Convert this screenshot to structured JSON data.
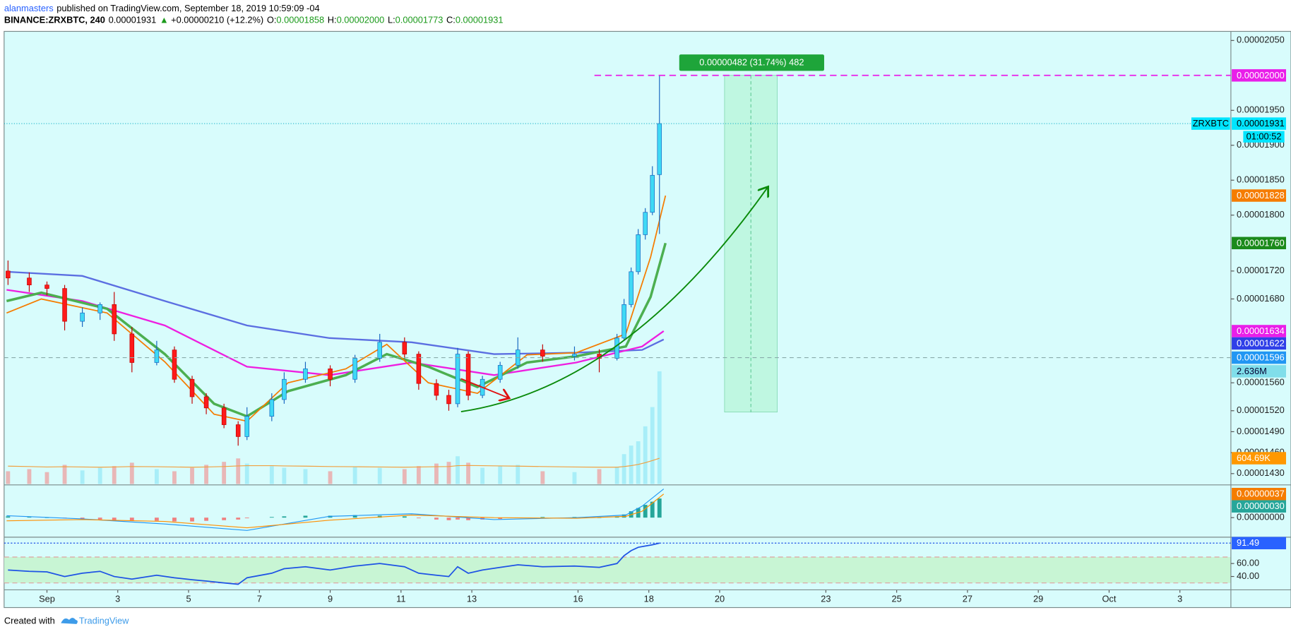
{
  "header": {
    "author": "alanmasters",
    "published": "published on TradingView.com, September 18, 2019 10:59:09 -04",
    "symbol": "BINANCE:ZRXBTC, 240",
    "last": "0.00001931",
    "arrow": "▲",
    "change": "+0.00000210 (+12.2%)",
    "ohlc": [
      {
        "label": "O:",
        "value": "0.00001858"
      },
      {
        "label": "H:",
        "value": "0.00002000"
      },
      {
        "label": "L:",
        "value": "0.00001773"
      },
      {
        "label": "C:",
        "value": "0.00001931"
      }
    ]
  },
  "footer": {
    "text": "Created with",
    "brand": "TradingView"
  },
  "chart_data": {
    "type": "candlestick",
    "xlim": [
      -0.21,
      34.44
    ],
    "xticks": [
      {
        "value": 1,
        "label": "Sep"
      },
      3,
      5,
      7,
      9,
      11,
      13,
      16,
      18,
      20,
      23,
      25,
      27,
      29,
      {
        "value": 31,
        "label": "Oct"
      },
      {
        "value": 33,
        "label": "3"
      }
    ],
    "ylim": [
      1.415e-05,
      2.063e-05
    ],
    "yticks": [
      {
        "value": 2.05e-05,
        "label": "0.00002050"
      },
      {
        "value": 1.95e-05,
        "label": "0.00001950"
      },
      {
        "value": 1.9e-05,
        "label": "0.00001900"
      },
      {
        "value": 1.85e-05,
        "label": "0.00001850"
      },
      {
        "value": 1.8e-05,
        "label": "0.00001800"
      },
      {
        "value": 1.72e-05,
        "label": "0.00001720"
      },
      {
        "value": 1.68e-05,
        "label": "0.00001680"
      },
      {
        "value": 1.56e-05,
        "label": "0.00001560"
      },
      {
        "value": 1.52e-05,
        "label": "0.00001520"
      },
      {
        "value": 1.49e-05,
        "label": "0.00001490"
      },
      {
        "value": 1.46e-05,
        "label": "0.00001460"
      },
      {
        "value": 1.43e-05,
        "label": "0.00001430"
      }
    ],
    "grid": false,
    "up_color": "#3fd9f5",
    "down_color": "#ff1a1a",
    "candles": {
      "x": [
        -0.1,
        0.5,
        1,
        1.5,
        2,
        2.5,
        2.9,
        3.4,
        4.1,
        4.6,
        5.1,
        5.5,
        6,
        6.4,
        6.65,
        7.35,
        7.7,
        8.3,
        9,
        9.7,
        10.4,
        11.1,
        11.5,
        12,
        12.35,
        12.6,
        12.9,
        13.3,
        13.8,
        14.3,
        15,
        15.9,
        16.6,
        17.1,
        17.3,
        17.5,
        17.7,
        17.9,
        18.1,
        18.3
      ],
      "open": [
        1.72e-05,
        1.71e-05,
        1.7e-05,
        1.695e-05,
        1.648e-05,
        1.66e-05,
        1.672e-05,
        1.63e-05,
        1.589e-05,
        1.607e-05,
        1.565e-05,
        1.54e-05,
        1.524e-05,
        1.5e-05,
        1.483e-05,
        1.512e-05,
        1.536e-05,
        1.565e-05,
        1.58e-05,
        1.565e-05,
        1.595e-05,
        1.618e-05,
        1.601e-05,
        1.559e-05,
        1.542e-05,
        1.53e-05,
        1.601e-05,
        1.542e-05,
        1.565e-05,
        1.585e-05,
        1.607e-05,
        1.598e-05,
        1.601e-05,
        1.595e-05,
        1.624e-05,
        1.672e-05,
        1.719e-05,
        1.772e-05,
        1.804e-05,
        1.858e-05
      ],
      "high": [
        1.735e-05,
        1.718e-05,
        1.705e-05,
        1.7e-05,
        1.668e-05,
        1.675e-05,
        1.69e-05,
        1.64e-05,
        1.62e-05,
        1.612e-05,
        1.57e-05,
        1.545e-05,
        1.53e-05,
        1.505e-05,
        1.525e-05,
        1.545e-05,
        1.575e-05,
        1.59e-05,
        1.585e-05,
        1.6e-05,
        1.63e-05,
        1.625e-05,
        1.605e-05,
        1.565e-05,
        1.55e-05,
        1.61e-05,
        1.605e-05,
        1.57e-05,
        1.59e-05,
        1.625e-05,
        1.615e-05,
        1.612e-05,
        1.608e-05,
        1.63e-05,
        1.68e-05,
        1.725e-05,
        1.78e-05,
        1.81e-05,
        1.87e-05,
        2e-05
      ],
      "low": [
        1.7e-05,
        1.69e-05,
        1.685e-05,
        1.635e-05,
        1.64e-05,
        1.65e-05,
        1.62e-05,
        1.575e-05,
        1.585e-05,
        1.56e-05,
        1.53e-05,
        1.515e-05,
        1.495e-05,
        1.47e-05,
        1.478e-05,
        1.505e-05,
        1.53e-05,
        1.56e-05,
        1.555e-05,
        1.56e-05,
        1.59e-05,
        1.595e-05,
        1.55e-05,
        1.535e-05,
        1.52e-05,
        1.525e-05,
        1.535e-05,
        1.538e-05,
        1.56e-05,
        1.58e-05,
        1.59e-05,
        1.592e-05,
        1.575e-05,
        1.592e-05,
        1.62e-05,
        1.668e-05,
        1.715e-05,
        1.765e-05,
        1.8e-05,
        1.773e-05
      ],
      "close": [
        1.71e-05,
        1.7e-05,
        1.695e-05,
        1.648e-05,
        1.66e-05,
        1.672e-05,
        1.63e-05,
        1.589e-05,
        1.607e-05,
        1.565e-05,
        1.54e-05,
        1.524e-05,
        1.5e-05,
        1.483e-05,
        1.512e-05,
        1.536e-05,
        1.565e-05,
        1.58e-05,
        1.565e-05,
        1.595e-05,
        1.618e-05,
        1.601e-05,
        1.559e-05,
        1.542e-05,
        1.53e-05,
        1.601e-05,
        1.542e-05,
        1.565e-05,
        1.585e-05,
        1.607e-05,
        1.598e-05,
        1.601e-05,
        1.595e-05,
        1.624e-05,
        1.672e-05,
        1.719e-05,
        1.772e-05,
        1.804e-05,
        1.857e-05,
        1.931e-05
      ],
      "volume": [
        300000,
        350000,
        280000,
        450000,
        320000,
        380000,
        420000,
        500000,
        350000,
        300000,
        380000,
        450000,
        520000,
        600000,
        480000,
        420000,
        380000,
        350000,
        300000,
        400000,
        380000,
        350000,
        420000,
        480000,
        520000,
        650000,
        500000,
        380000,
        420000,
        450000,
        300000,
        280000,
        350000,
        400000,
        700000,
        900000,
        1000000,
        1350000,
        1800000,
        2636000
      ],
      "volume_ma": [
        420000,
        410000,
        400000,
        405000,
        400000,
        395000,
        400000,
        410000,
        405000,
        400000,
        395000,
        400000,
        410000,
        425000,
        430000,
        430000,
        425000,
        420000,
        410000,
        405000,
        400000,
        395000,
        400000,
        405000,
        410000,
        430000,
        435000,
        430000,
        425000,
        420000,
        410000,
        400000,
        395000,
        395000,
        410000,
        430000,
        460000,
        500000,
        550000,
        604690
      ]
    },
    "volume_lim": [
      0,
      10580000
    ],
    "volume_ma_color": "#f0a040",
    "lines": [
      {
        "color": "#5b6ee1",
        "width": 2,
        "x": [
          -0.14,
          2,
          4.33,
          6.65,
          8.98,
          11.3,
          13.63,
          15.95,
          17.81,
          18.42
        ],
        "values": [
          1.719e-05,
          1.713e-05,
          1.677e-05,
          1.642e-05,
          1.624e-05,
          1.618e-05,
          1.601e-05,
          1.603e-05,
          1.607e-05,
          1.622e-05
        ]
      },
      {
        "color": "#ee1ee0",
        "width": 2,
        "x": [
          -0.14,
          2,
          4.33,
          6.65,
          8.98,
          11.3,
          13.63,
          15.95,
          17.81,
          18.42
        ],
        "values": [
          1.693e-05,
          1.677e-05,
          1.642e-05,
          1.583e-05,
          1.571e-05,
          1.589e-05,
          1.571e-05,
          1.589e-05,
          1.612e-05,
          1.634e-05
        ]
      },
      {
        "color": "#4caf50",
        "width": 3,
        "x": [
          -0.14,
          0.84,
          2.7,
          4.33,
          5.72,
          6.65,
          7.81,
          9.44,
          10.6,
          11.77,
          13.16,
          14.56,
          15.95,
          17.35,
          18.05,
          18.47
        ],
        "values": [
          1.677e-05,
          1.689e-05,
          1.666e-05,
          1.601e-05,
          1.53e-05,
          1.512e-05,
          1.548e-05,
          1.571e-05,
          1.601e-05,
          1.583e-05,
          1.554e-05,
          1.589e-05,
          1.598e-05,
          1.612e-05,
          1.683e-05,
          1.76e-05
        ]
      },
      {
        "color": "#f57c00",
        "width": 1.5,
        "x": [
          -0.14,
          0.84,
          2.7,
          4.33,
          5.72,
          6.65,
          7.81,
          9.44,
          10.6,
          11.77,
          13.16,
          14.56,
          15.95,
          17.35,
          18.05,
          18.47
        ],
        "values": [
          1.66e-05,
          1.68e-05,
          1.66e-05,
          1.59e-05,
          1.515e-05,
          1.505e-05,
          1.56e-05,
          1.58e-05,
          1.615e-05,
          1.56e-05,
          1.545e-05,
          1.6e-05,
          1.603e-05,
          1.63e-05,
          1.74e-05,
          1.828e-05
        ]
      }
    ],
    "price_labels": [
      {
        "value": 2e-05,
        "label": "0.00002000",
        "color": "#e91ee9",
        "text_color": "#ffffff"
      },
      {
        "value": 1.931e-05,
        "label": "0.00001931",
        "color": "#00e5ff",
        "text_color": "#000000",
        "name": "ZRXBTC",
        "countdown": "01:00:52"
      },
      {
        "value": 1.828e-05,
        "label": "0.00001828",
        "color": "#f57c00",
        "text_color": "#ffffff"
      },
      {
        "value": 1.76e-05,
        "label": "0.00001760",
        "color": "#1b8a1b",
        "text_color": "#ffffff"
      },
      {
        "value": 1.634e-05,
        "label": "0.00001634",
        "color": "#e91ee9",
        "text_color": "#ffffff"
      },
      {
        "value": 1.622e-05,
        "label": "0.00001622",
        "color": "#2f3fe8",
        "text_color": "#ffffff"
      },
      {
        "value": 1.596e-05,
        "label": "0.00001596",
        "color": "#2196f3",
        "text_color": "#ffffff"
      }
    ],
    "volume_labels": [
      {
        "value": 2636000,
        "label": "2.636M",
        "color": "#80deea"
      },
      {
        "value": 604690,
        "label": "604.69K",
        "color": "#ff9800"
      }
    ],
    "measure": {
      "label": "0.00000482 (31.74%) 482",
      "range": [
        1.518e-05,
        2e-05
      ]
    },
    "macd": {
      "ylim": [
        -3e-07,
        5e-07
      ],
      "yticks": [
        {
          "value": 0,
          "label": "0.00000000"
        }
      ],
      "x": [
        -0.14,
        2,
        4.33,
        6.65,
        8.98,
        11.3,
        13.63,
        15.95,
        17.35,
        17.81,
        18.42
      ],
      "macd": [
        3e-08,
        -2e-08,
        -1e-07,
        -2e-07,
        2e-08,
        6e-08,
        -3e-08,
        0,
        4e-08,
        1.8e-07,
        4.5e-07
      ],
      "signal": [
        -5e-08,
        -3e-08,
        -6e-08,
        -1.6e-07,
        -4e-08,
        4e-08,
        0,
        -1e-08,
        2e-08,
        1e-07,
        3.7e-07
      ],
      "histogram": [
        2e-08,
        1e-08,
        0,
        -1e-08,
        -2e-08,
        -3e-08,
        -4e-08,
        -5e-08,
        -5e-08,
        -6e-08,
        -6e-08,
        -5e-08,
        -4e-08,
        -3e-08,
        -1e-08,
        1e-08,
        2e-08,
        3e-08,
        3e-08,
        4e-08,
        3e-08,
        2e-08,
        -1e-08,
        -3e-08,
        -4e-08,
        -3e-08,
        -4e-08,
        -3e-08,
        -2e-08,
        0,
        1e-08,
        1e-08,
        0,
        2e-08,
        5e-08,
        1e-07,
        1.5e-07,
        2e-07,
        2.5e-07,
        3e-07
      ],
      "macd_color": "#2196f3",
      "signal_color": "#ff8f00",
      "pos_color": "#26a69a",
      "neg_color": "#ef7f7f",
      "labels": [
        {
          "value": 3.7e-07,
          "label": "0.00000037",
          "color": "#f57c00"
        },
        {
          "value": 3e-07,
          "label": "0.00000030",
          "color": "#26a69a"
        }
      ]
    },
    "rsi": {
      "ylim": [
        20,
        100
      ],
      "yticks": [
        {
          "value": 60,
          "label": "60.00"
        },
        {
          "value": 40,
          "label": "40.00"
        }
      ],
      "bands": [
        70,
        30
      ],
      "color": "#1e53e5",
      "values": [
        50,
        48,
        47,
        40,
        45,
        48,
        40,
        36,
        42,
        38,
        35,
        33,
        30,
        28,
        38,
        45,
        52,
        55,
        50,
        56,
        60,
        55,
        45,
        42,
        40,
        55,
        45,
        50,
        54,
        58,
        55,
        56,
        54,
        60,
        72,
        80,
        85,
        87,
        89,
        91.49
      ],
      "value_labels": {
        "39": "91.49"
      }
    }
  }
}
